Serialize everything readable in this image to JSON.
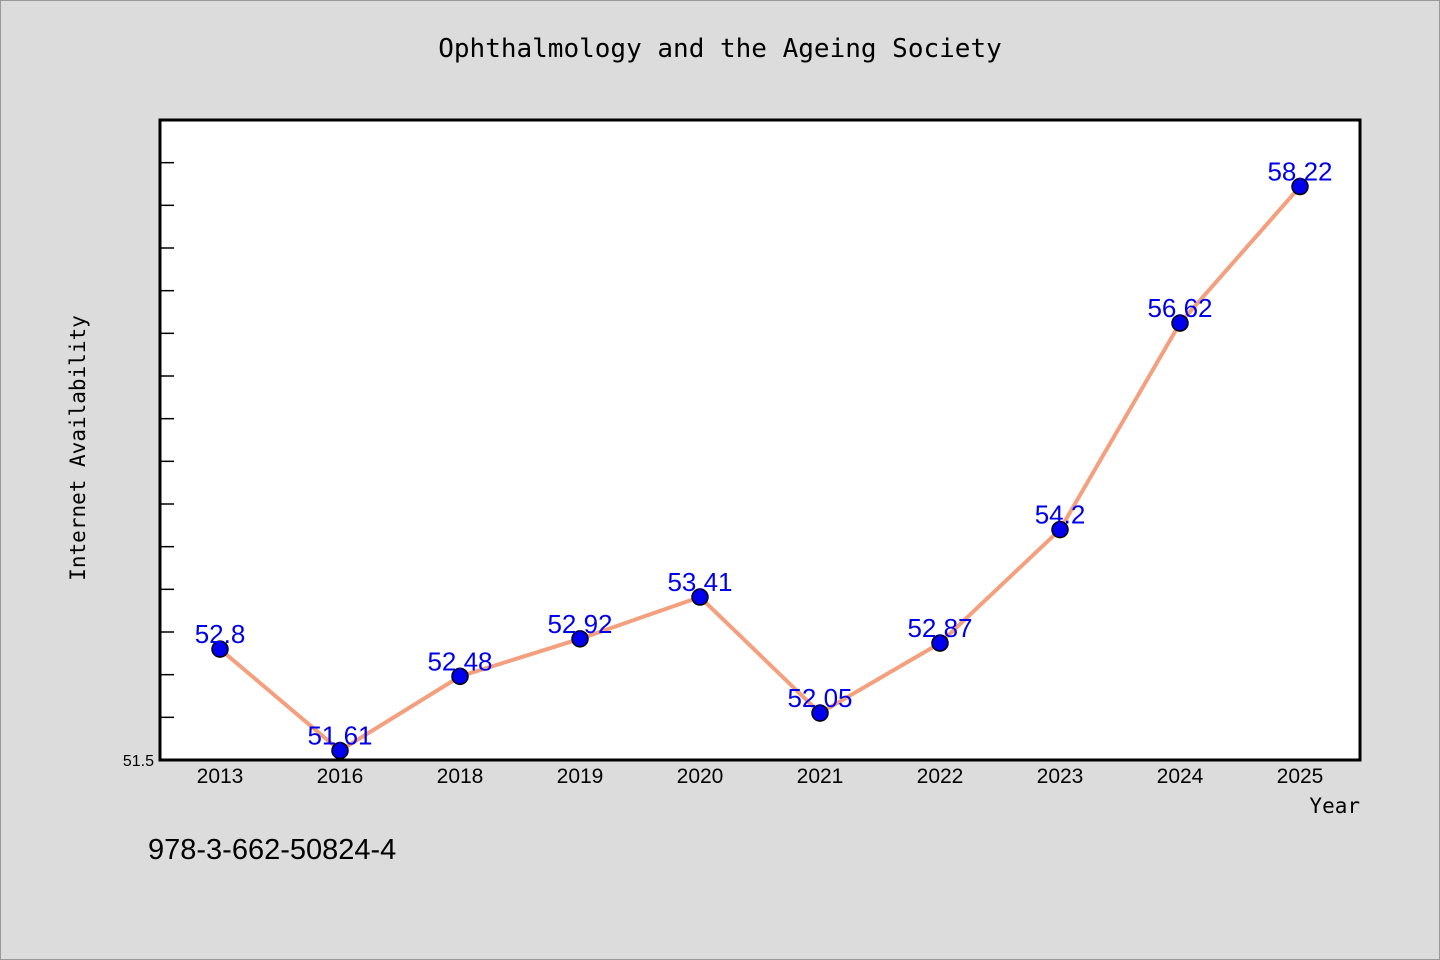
{
  "chart_data": {
    "type": "line",
    "title": "Ophthalmology and the Ageing Society",
    "xlabel": "Year",
    "ylabel": "Internet Availability",
    "categories": [
      "2013",
      "2016",
      "2018",
      "2019",
      "2020",
      "2021",
      "2022",
      "2023",
      "2024",
      "2025"
    ],
    "values": [
      52.8,
      51.61,
      52.48,
      52.92,
      53.41,
      52.05,
      52.87,
      54.2,
      56.62,
      58.22
    ],
    "data_labels": [
      "52.8",
      "51.61",
      "52.48",
      "52.92",
      "53.41",
      "52.05",
      "52.87",
      "54.2",
      "56.62",
      "58.22"
    ],
    "ylim": [
      51.5,
      59.0
    ],
    "ytick_labels": [
      "51.5"
    ],
    "grid": false,
    "line_color": "#f4a07f",
    "marker_color": "#0000ee",
    "label_color": "#0000ee"
  },
  "footer": {
    "code": "978-3-662-50824-4"
  }
}
